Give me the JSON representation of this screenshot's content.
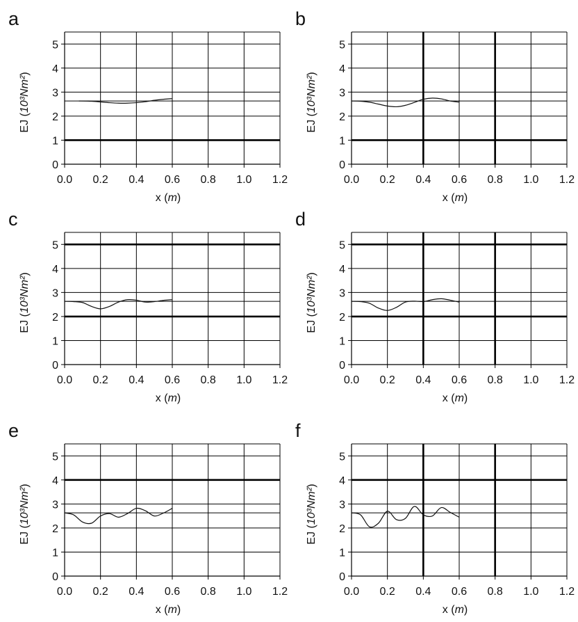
{
  "chart_data": [
    {
      "panel": "a",
      "type": "line",
      "xlabel": "x (m)",
      "ylabel": "EJ (10³Nm²)",
      "xlim": [
        0,
        1.2
      ],
      "ylim": [
        0,
        5.5
      ],
      "xticks": [
        "0.0",
        "0.2",
        "0.4",
        "0.6",
        "0.8",
        "1.0",
        "1.2"
      ],
      "yticks": [
        "0",
        "1",
        "2",
        "3",
        "4",
        "5"
      ],
      "reference_lines": {
        "y": [
          1.0,
          2.63,
          3.0
        ]
      },
      "thick_lines": {
        "y": [
          1
        ],
        "x": []
      },
      "series": [
        {
          "x": [
            0.08,
            0.15,
            0.2,
            0.25,
            0.3,
            0.35,
            0.4,
            0.45,
            0.5,
            0.55,
            0.6
          ],
          "y": [
            2.63,
            2.62,
            2.59,
            2.56,
            2.54,
            2.54,
            2.56,
            2.6,
            2.66,
            2.7,
            2.73
          ]
        }
      ]
    },
    {
      "panel": "b",
      "type": "line",
      "xlabel": "x (m)",
      "ylabel": "EJ (10³Nm²)",
      "xlim": [
        0,
        1.2
      ],
      "ylim": [
        0,
        5.5
      ],
      "xticks": [
        "0.0",
        "0.2",
        "0.4",
        "0.6",
        "0.8",
        "1.0",
        "1.2"
      ],
      "yticks": [
        "0",
        "1",
        "2",
        "3",
        "4",
        "5"
      ],
      "reference_lines": {
        "y": [
          1.0,
          2.63,
          3.0
        ]
      },
      "thick_lines": {
        "y": [
          1
        ],
        "x": [
          0.4,
          0.8
        ]
      },
      "series": [
        {
          "x": [
            0.0,
            0.05,
            0.1,
            0.15,
            0.2,
            0.25,
            0.3,
            0.35,
            0.4,
            0.45,
            0.5,
            0.55,
            0.6
          ],
          "y": [
            2.63,
            2.62,
            2.58,
            2.5,
            2.42,
            2.39,
            2.45,
            2.57,
            2.7,
            2.75,
            2.72,
            2.63,
            2.58
          ]
        }
      ]
    },
    {
      "panel": "c",
      "type": "line",
      "xlabel": "x (m)",
      "ylabel": "EJ (10³Nm²)",
      "xlim": [
        0,
        1.2
      ],
      "ylim": [
        0,
        5.5
      ],
      "xticks": [
        "0.0",
        "0.2",
        "0.4",
        "0.6",
        "0.8",
        "1.0",
        "1.2"
      ],
      "yticks": [
        "0",
        "1",
        "2",
        "3",
        "4",
        "5"
      ],
      "reference_lines": {
        "y": [
          2.0,
          2.63,
          5.0
        ]
      },
      "thick_lines": {
        "y": [
          2,
          5
        ],
        "x": []
      },
      "series": [
        {
          "x": [
            0.0,
            0.05,
            0.1,
            0.15,
            0.2,
            0.25,
            0.3,
            0.35,
            0.4,
            0.45,
            0.5,
            0.55,
            0.6
          ],
          "y": [
            2.63,
            2.62,
            2.58,
            2.42,
            2.32,
            2.42,
            2.6,
            2.7,
            2.68,
            2.6,
            2.62,
            2.67,
            2.7
          ]
        }
      ]
    },
    {
      "panel": "d",
      "type": "line",
      "xlabel": "x (m)",
      "ylabel": "EJ (10³Nm²)",
      "xlim": [
        0,
        1.2
      ],
      "ylim": [
        0,
        5.5
      ],
      "xticks": [
        "0.0",
        "0.2",
        "0.4",
        "0.6",
        "0.8",
        "1.0",
        "1.2"
      ],
      "yticks": [
        "0",
        "1",
        "2",
        "3",
        "4",
        "5"
      ],
      "reference_lines": {
        "y": [
          2.0,
          2.63,
          5.0
        ]
      },
      "thick_lines": {
        "y": [
          2,
          5
        ],
        "x": [
          0.4,
          0.8
        ]
      },
      "series": [
        {
          "x": [
            0.0,
            0.05,
            0.1,
            0.15,
            0.2,
            0.25,
            0.3,
            0.35,
            0.4,
            0.45,
            0.5,
            0.55,
            0.6
          ],
          "y": [
            2.63,
            2.62,
            2.55,
            2.35,
            2.25,
            2.38,
            2.6,
            2.64,
            2.62,
            2.7,
            2.74,
            2.68,
            2.6
          ]
        }
      ]
    },
    {
      "panel": "e",
      "type": "line",
      "xlabel": "x (m)",
      "ylabel": "EJ (10³Nm²)",
      "xlim": [
        0,
        1.2
      ],
      "ylim": [
        0,
        5.5
      ],
      "xticks": [
        "0.0",
        "0.2",
        "0.4",
        "0.6",
        "0.8",
        "1.0",
        "1.2"
      ],
      "yticks": [
        "0",
        "1",
        "2",
        "3",
        "4",
        "5"
      ],
      "reference_lines": {
        "y": [
          2.63,
          3.0,
          4.0
        ]
      },
      "thick_lines": {
        "y": [
          4
        ],
        "x": []
      },
      "series": [
        {
          "x": [
            0.0,
            0.05,
            0.1,
            0.15,
            0.2,
            0.25,
            0.3,
            0.35,
            0.4,
            0.45,
            0.5,
            0.55,
            0.6
          ],
          "y": [
            2.63,
            2.55,
            2.25,
            2.2,
            2.5,
            2.6,
            2.45,
            2.6,
            2.82,
            2.72,
            2.5,
            2.62,
            2.82
          ]
        }
      ]
    },
    {
      "panel": "f",
      "type": "line",
      "xlabel": "x (m)",
      "ylabel": "EJ (10³Nm²)",
      "xlim": [
        0,
        1.2
      ],
      "ylim": [
        0,
        5.5
      ],
      "xticks": [
        "0.0",
        "0.2",
        "0.4",
        "0.6",
        "0.8",
        "1.0",
        "1.2"
      ],
      "yticks": [
        "0",
        "1",
        "2",
        "3",
        "4",
        "5"
      ],
      "reference_lines": {
        "y": [
          2.63,
          3.0,
          4.0
        ]
      },
      "thick_lines": {
        "y": [
          4
        ],
        "x": [
          0.4,
          0.8
        ]
      },
      "series": [
        {
          "x": [
            0.0,
            0.05,
            0.1,
            0.15,
            0.2,
            0.25,
            0.3,
            0.35,
            0.4,
            0.45,
            0.5,
            0.55,
            0.6
          ],
          "y": [
            2.63,
            2.55,
            2.05,
            2.2,
            2.7,
            2.35,
            2.4,
            2.9,
            2.55,
            2.5,
            2.85,
            2.65,
            2.45
          ]
        }
      ]
    }
  ]
}
